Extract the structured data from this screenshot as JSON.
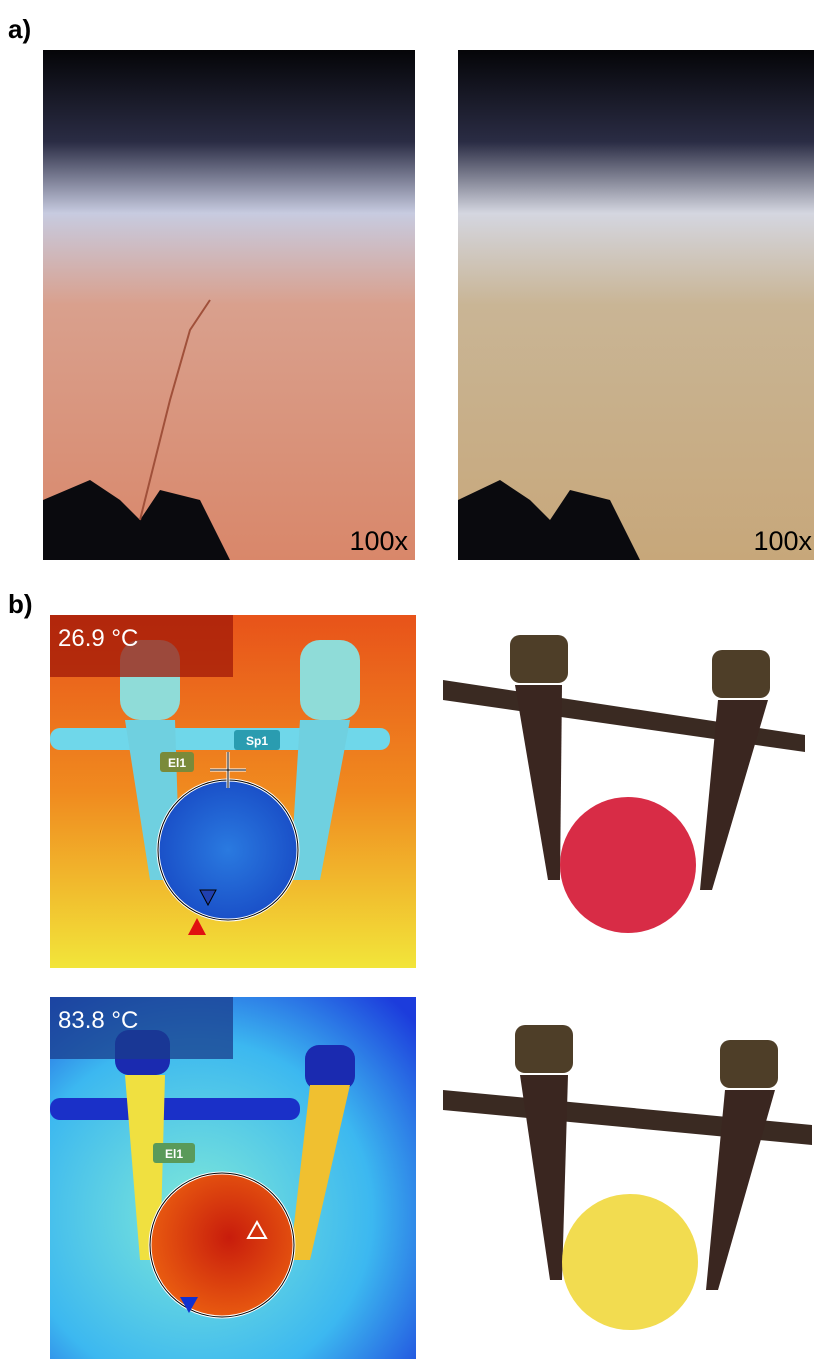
{
  "labels": {
    "a": "a)",
    "b": "b)"
  },
  "panel_a": {
    "images": [
      {
        "magnification": "100x"
      },
      {
        "magnification": "100x"
      }
    ]
  },
  "panel_b": {
    "thermal": [
      {
        "temperature": "26.9 °C",
        "markers": [
          "Sp1",
          "El1"
        ]
      },
      {
        "temperature": "83.8 °C",
        "markers": [
          "El1"
        ]
      }
    ]
  }
}
